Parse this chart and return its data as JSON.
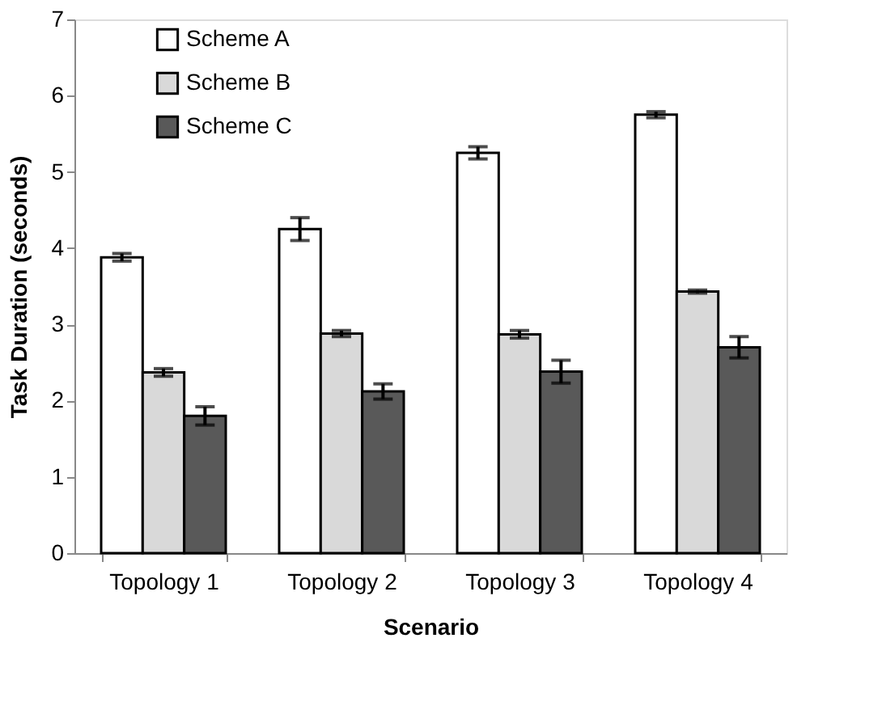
{
  "chart_data": {
    "type": "bar",
    "xlabel": "Scenario",
    "ylabel": "Task Duration (seconds)",
    "categories": [
      "Topology 1",
      "Topology 2",
      "Topology 3",
      "Topology 4"
    ],
    "series": [
      {
        "name": "Scheme A",
        "color": "#ffffff",
        "values": [
          3.88,
          4.25,
          5.25,
          5.75
        ],
        "errors": [
          0.05,
          0.15,
          0.08,
          0.04
        ]
      },
      {
        "name": "Scheme B",
        "color": "#d9d9d9",
        "values": [
          2.37,
          2.88,
          2.87,
          3.43
        ],
        "errors": [
          0.05,
          0.04,
          0.05,
          0.02
        ]
      },
      {
        "name": "Scheme C",
        "color": "#595959",
        "values": [
          1.8,
          2.12,
          2.38,
          2.7
        ],
        "errors": [
          0.12,
          0.1,
          0.15,
          0.14
        ]
      }
    ],
    "ylim": [
      0,
      7
    ],
    "yticks": [
      0,
      1,
      2,
      3,
      4,
      5,
      6,
      7
    ],
    "grid": false,
    "legend": "top left"
  }
}
